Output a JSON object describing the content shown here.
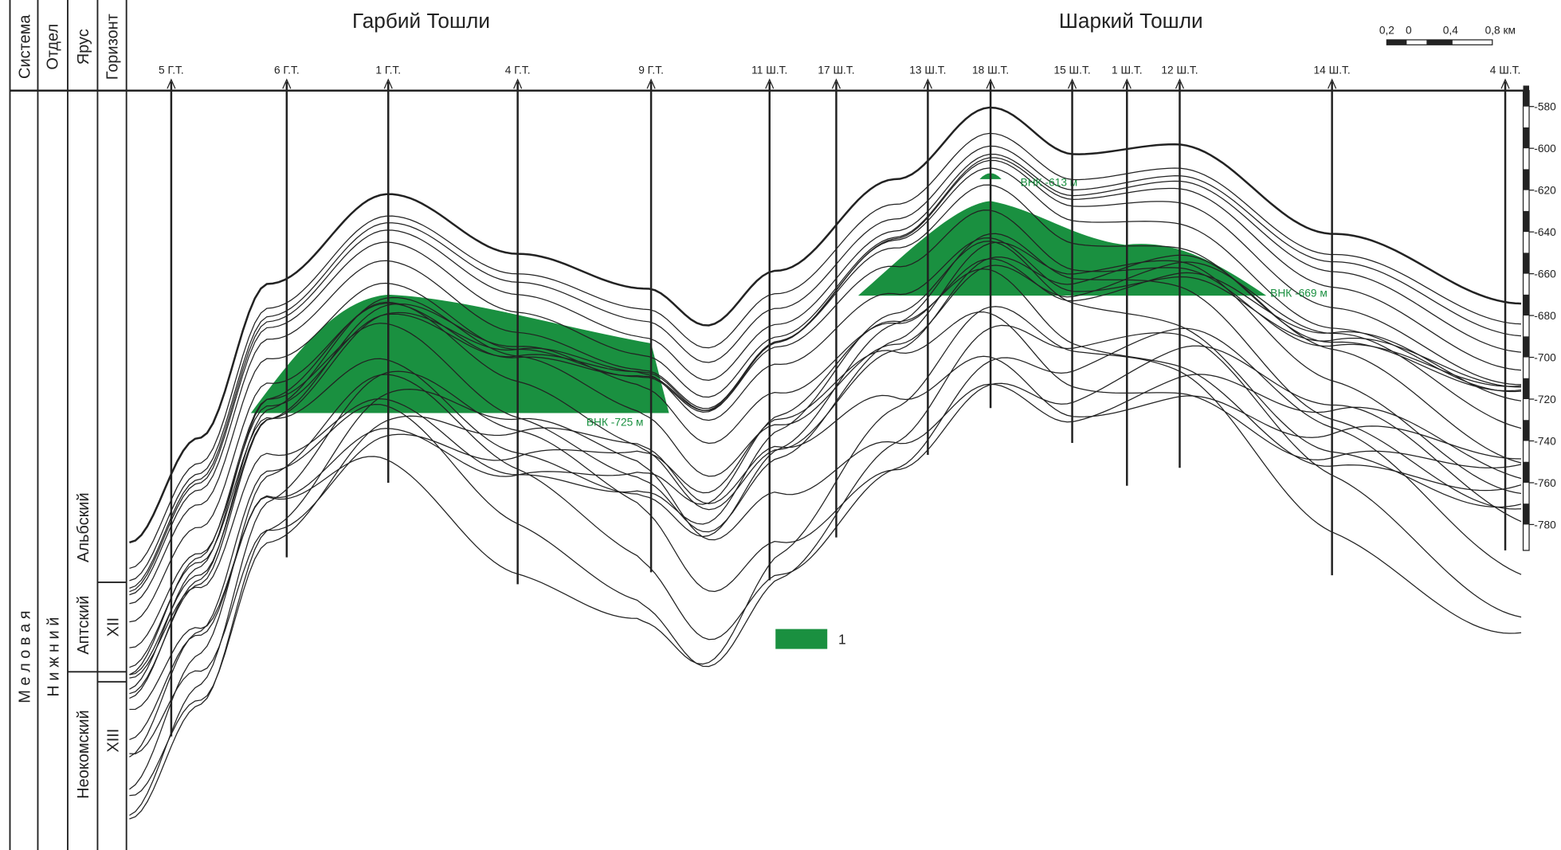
{
  "header": {
    "columns": [
      "Система",
      "Отдел",
      "Ярус",
      "Горизонт"
    ]
  },
  "stratigraphy": {
    "system": "М е л о в а я",
    "division": "Н и ж н и й",
    "stages": [
      "Альбский",
      "Аптский",
      "Неокомский"
    ],
    "horizons": [
      "XII",
      "XIII"
    ]
  },
  "areas": [
    "Гарбий Тошли",
    "Шаркий Тошли"
  ],
  "wells": [
    "5 Г.Т.",
    "6 Г.Т.",
    "1 Г.Т.",
    "4 Г.Т.",
    "9 Г.Т.",
    "11 Ш.Т.",
    "17 Ш.Т.",
    "13 Ш.Т.",
    "18 Ш.Т.",
    "15 Ш.Т.",
    "1 Ш.Т.",
    "12 Ш.Т.",
    "14 Ш.Т.",
    "4 Ш.Т."
  ],
  "depth_ticks": [
    "-580",
    "-600",
    "-620",
    "-640",
    "-660",
    "-680",
    "-700",
    "-720",
    "-740",
    "-760",
    "-780"
  ],
  "contacts": [
    "ВНК -613 м",
    "ВНК -669 м",
    "ВНК -725 м"
  ],
  "scale_bar": [
    "0,2",
    "0",
    "0,4",
    "0,8 км"
  ],
  "legend": {
    "label": "1"
  }
}
